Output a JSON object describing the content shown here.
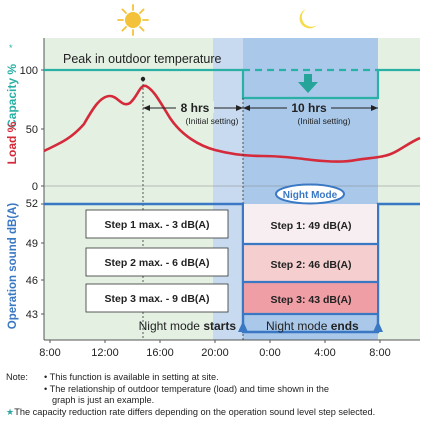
{
  "y_axis": {
    "capacity_label": "Capacity %",
    "capacity_star": "*",
    "load_label": "Load %",
    "sound_label": "Operation sound dB(A)",
    "capacity_ticks": [
      "100",
      "50",
      "0"
    ],
    "sound_ticks": [
      "52",
      "49",
      "46",
      "43"
    ]
  },
  "x_axis": {
    "ticks": [
      "8:00",
      "12:00",
      "16:00",
      "20:00",
      "0:00",
      "4:00",
      "8:00"
    ]
  },
  "annotations": {
    "peak": "Peak in outdoor  temperature",
    "left_hours": "8 hrs",
    "right_hours": "10 hrs",
    "initial_setting": "(Initial setting)",
    "night_mode_badge": "Night Mode",
    "night_starts_prefix": "Night mode ",
    "night_starts_bold": "starts",
    "night_ends_prefix": "Night mode ",
    "night_ends_bold": "ends"
  },
  "steps_left": [
    "Step 1 max. - 3 dB(A)",
    "Step 2 max. - 6 dB(A)",
    "Step 3 max. - 9 dB(A)"
  ],
  "steps_right": [
    "Step 1: 49 dB(A)",
    "Step 2: 46 dB(A)",
    "Step 3: 43 dB(A)"
  ],
  "notes": {
    "label": "Note:",
    "line1": "• This function is available in setting at site.",
    "line2": "• The relationship of outdoor temperature (load) and time shown in the",
    "line3": "graph is just an example.",
    "line4_star": "★",
    "line4": "The capacity reduction rate differs depending on the operation sound level step selected."
  },
  "colors": {
    "capacity": "#2ab0a5",
    "load": "#d42a3a",
    "sound": "#3a78c4",
    "day_bg": "#e3f0e2",
    "night_bg": "#a8c7ea",
    "sun": "#f3c23a",
    "moon": "#f6dc4a"
  },
  "icons": [
    "sun-icon",
    "moon-icon",
    "down-arrow-icon",
    "up-arrow-icon"
  ]
}
